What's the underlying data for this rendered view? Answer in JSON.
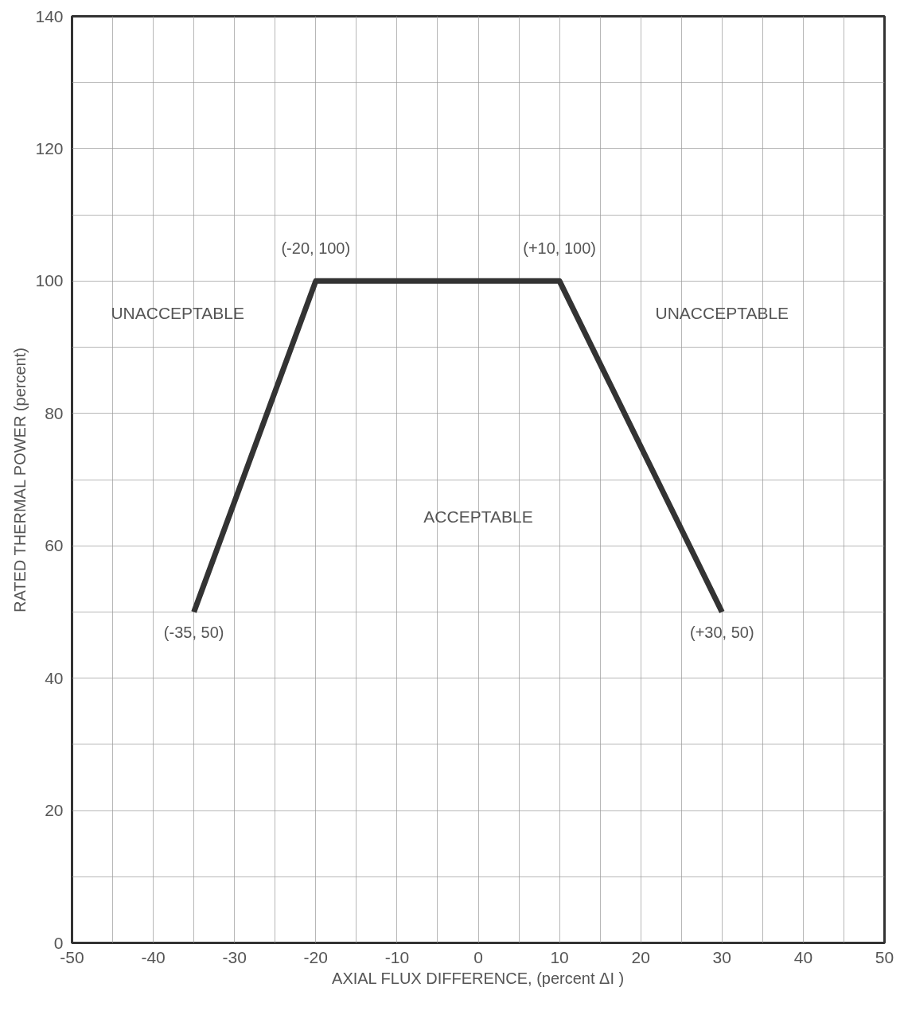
{
  "chart_data": {
    "type": "line",
    "xlabel": "AXIAL FLUX DIFFERENCE, (percent ΔI )",
    "ylabel": "RATED THERMAL POWER (percent)",
    "x": [
      -35,
      -20,
      10,
      30
    ],
    "series": [
      {
        "color": "#333333",
        "values": [
          50,
          100,
          100,
          50
        ]
      }
    ],
    "xlim": [
      -50,
      50
    ],
    "ylim": [
      0,
      140
    ],
    "xticks": [
      -50,
      {
        "value": -45,
        "label": null
      },
      -40,
      {
        "value": -35,
        "label": null
      },
      -30,
      {
        "value": -25,
        "label": null
      },
      -20,
      {
        "value": -15,
        "label": null
      },
      -10,
      {
        "value": -5,
        "label": null
      },
      0,
      {
        "value": 5,
        "label": null
      },
      10,
      {
        "value": 15,
        "label": null
      },
      20,
      {
        "value": 25,
        "label": null
      },
      30,
      {
        "value": 35,
        "label": null
      },
      40,
      {
        "value": 45,
        "label": null
      },
      50
    ],
    "yticks": [
      0,
      {
        "value": 10,
        "label": null
      },
      20,
      {
        "value": 30,
        "label": null
      },
      40,
      {
        "value": 50,
        "label": null
      },
      60,
      {
        "value": 70,
        "label": null
      },
      80,
      {
        "value": 90,
        "label": null
      },
      100,
      {
        "value": 110,
        "label": null
      },
      120,
      {
        "value": 130,
        "label": null
      },
      140
    ],
    "grid": true,
    "marker": "none",
    "line_style": "solid",
    "annotations": [
      {
        "text": "(-20, 100)",
        "x": -20,
        "y": 100
      },
      {
        "text": "(+10, 100)",
        "x": 10,
        "y": 100
      },
      {
        "text": "(-35, 50)",
        "x": -35,
        "y": 50
      },
      {
        "text": "(+30, 50)",
        "x": 30,
        "y": 50
      },
      "UNACCEPTABLE",
      "UNACCEPTABLE",
      "ACCEPTABLE"
    ]
  }
}
